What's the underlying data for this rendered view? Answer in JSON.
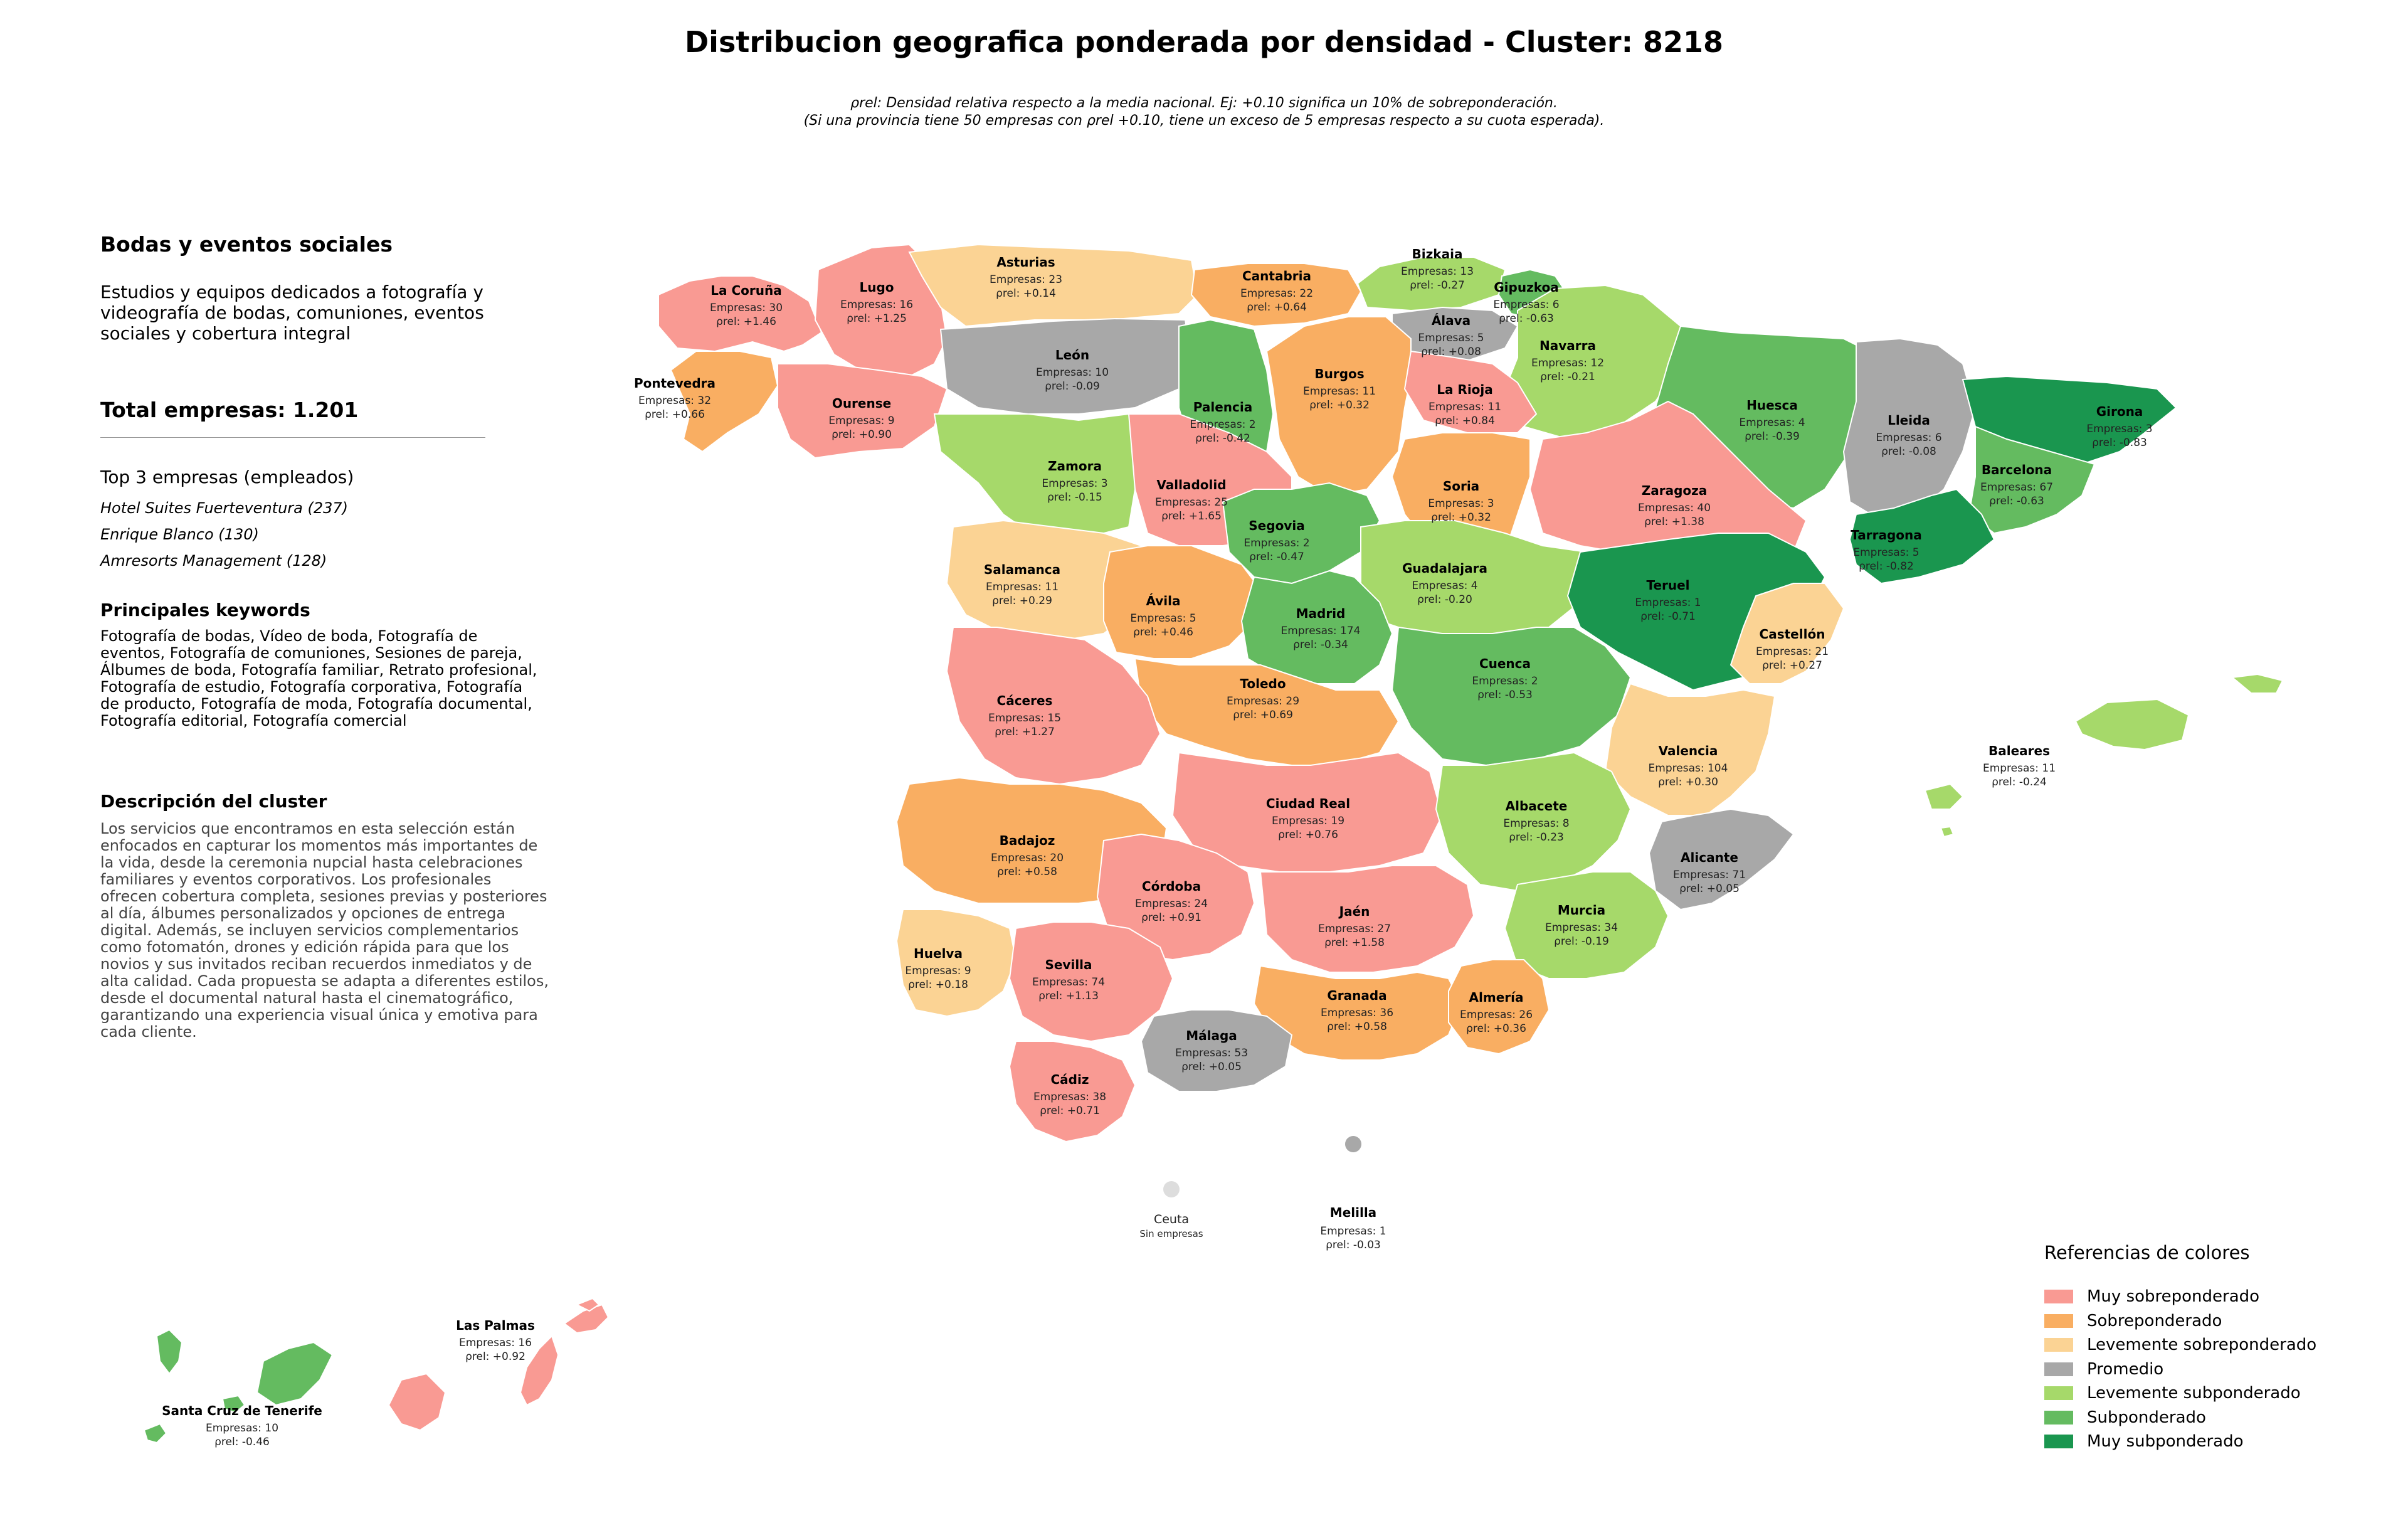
{
  "title": "Distribucion geografica ponderada por densidad - Cluster: 8218",
  "subtitle_line1": "ρrel: Densidad relativa respecto a la media nacional. Ej: +0.10 significa un 10% de sobreponderación.",
  "subtitle_line2": "(Si una provincia tiene 50 empresas con ρrel +0.10, tiene un exceso de 5 empresas respecto a su cuota esperada).",
  "panel": {
    "cluster_name": "Bodas y eventos sociales",
    "cluster_summary": "Estudios y equipos dedicados a fotografía y videografía de bodas, comuniones, eventos sociales y cobertura integral",
    "total_label": "Total empresas: 1.201",
    "top_label": "Top 3 empresas (empleados)",
    "top_companies": [
      "Hotel Suites Fuerteventura (237)",
      "Enrique Blanco (130)",
      "Amresorts Management (128)"
    ],
    "keywords_heading": "Principales keywords",
    "keywords": "Fotografía de bodas, Vídeo de boda, Fotografía de eventos, Fotografía de comuniones, Sesiones de pareja, Álbumes de boda, Fotografía familiar, Retrato profesional, Fotografía de estudio, Fotografía corporativa, Fotografía de producto, Fotografía de moda, Fotografía documental, Fotografía editorial, Fotografía comercial",
    "description_heading": "Descripción del cluster",
    "description": "Los servicios que encontramos en esta selección están enfocados en capturar los momentos más importantes de la vida, desde la ceremonia nupcial hasta celebraciones familiares y eventos corporativos. Los profesionales ofrecen cobertura completa, sesiones previas y posteriores al día, álbumes personalizados y opciones de entrega digital. Además, se incluyen servicios complementarios como fotomatón, drones y edición rápida para que los novios y sus invitados reciban recuerdos inmediatos y de alta calidad. Cada propuesta se adapta a diferentes estilos, desde el documental natural hasta el cinematográfico, garantizando una experiencia visual única y emotiva para cada cliente."
  },
  "colors": {
    "muy_sobre": "#f99a93",
    "sobre": "#f9ae62",
    "lev_sobre": "#fbd394",
    "promedio": "#a8a8a8",
    "lev_sub": "#a6d96a",
    "sub": "#64bb60",
    "muy_sub": "#1a964f",
    "no_data": "#dddddd"
  },
  "legend": {
    "title": "Referencias de colores",
    "items": [
      {
        "label": "Muy sobreponderado",
        "cat": "muy_sobre"
      },
      {
        "label": "Sobreponderado",
        "cat": "sobre"
      },
      {
        "label": "Levemente sobreponderado",
        "cat": "lev_sobre"
      },
      {
        "label": "Promedio",
        "cat": "promedio"
      },
      {
        "label": "Levemente subponderado",
        "cat": "lev_sub"
      },
      {
        "label": "Subponderado",
        "cat": "sub"
      },
      {
        "label": "Muy subponderado",
        "cat": "muy_sub"
      }
    ]
  },
  "companies_prefix": "Empresas: ",
  "rho_prefix": "ρrel: ",
  "provinces": [
    {
      "name": "La Coruña",
      "companies": 30,
      "rho": "+1.46",
      "cat": "muy_sobre"
    },
    {
      "name": "Lugo",
      "companies": 16,
      "rho": "+1.25",
      "cat": "muy_sobre"
    },
    {
      "name": "Asturias",
      "companies": 23,
      "rho": "+0.14",
      "cat": "lev_sobre"
    },
    {
      "name": "Cantabria",
      "companies": 22,
      "rho": "+0.64",
      "cat": "sobre"
    },
    {
      "name": "Bizkaia",
      "companies": 13,
      "rho": "-0.27",
      "cat": "lev_sub"
    },
    {
      "name": "Gipuzkoa",
      "companies": 6,
      "rho": "-0.63",
      "cat": "sub"
    },
    {
      "name": "Álava",
      "companies": 5,
      "rho": "+0.08",
      "cat": "promedio"
    },
    {
      "name": "Navarra",
      "companies": 12,
      "rho": "-0.21",
      "cat": "lev_sub"
    },
    {
      "name": "Pontevedra",
      "companies": 32,
      "rho": "+0.66",
      "cat": "sobre"
    },
    {
      "name": "Ourense",
      "companies": 9,
      "rho": "+0.90",
      "cat": "muy_sobre"
    },
    {
      "name": "León",
      "companies": 10,
      "rho": "-0.09",
      "cat": "promedio"
    },
    {
      "name": "Palencia",
      "companies": 2,
      "rho": "-0.42",
      "cat": "sub"
    },
    {
      "name": "Burgos",
      "companies": 11,
      "rho": "+0.32",
      "cat": "sobre"
    },
    {
      "name": "La Rioja",
      "companies": 11,
      "rho": "+0.84",
      "cat": "muy_sobre"
    },
    {
      "name": "Huesca",
      "companies": 4,
      "rho": "-0.39",
      "cat": "sub"
    },
    {
      "name": "Lleida",
      "companies": 6,
      "rho": "-0.08",
      "cat": "promedio"
    },
    {
      "name": "Girona",
      "companies": 3,
      "rho": "-0.83",
      "cat": "muy_sub"
    },
    {
      "name": "Barcelona",
      "companies": 67,
      "rho": "-0.63",
      "cat": "sub"
    },
    {
      "name": "Zamora",
      "companies": 3,
      "rho": "-0.15",
      "cat": "lev_sub"
    },
    {
      "name": "Valladolid",
      "companies": 25,
      "rho": "+1.65",
      "cat": "muy_sobre"
    },
    {
      "name": "Soria",
      "companies": 3,
      "rho": "+0.32",
      "cat": "sobre"
    },
    {
      "name": "Zaragoza",
      "companies": 40,
      "rho": "+1.38",
      "cat": "muy_sobre"
    },
    {
      "name": "Tarragona",
      "companies": 5,
      "rho": "-0.82",
      "cat": "muy_sub"
    },
    {
      "name": "Segovia",
      "companies": 2,
      "rho": "-0.47",
      "cat": "sub"
    },
    {
      "name": "Salamanca",
      "companies": 11,
      "rho": "+0.29",
      "cat": "lev_sobre"
    },
    {
      "name": "Guadalajara",
      "companies": 4,
      "rho": "-0.20",
      "cat": "lev_sub"
    },
    {
      "name": "Teruel",
      "companies": 1,
      "rho": "-0.71",
      "cat": "muy_sub"
    },
    {
      "name": "Ávila",
      "companies": 5,
      "rho": "+0.46",
      "cat": "sobre"
    },
    {
      "name": "Madrid",
      "companies": 174,
      "rho": "-0.34",
      "cat": "sub"
    },
    {
      "name": "Castellón",
      "companies": 21,
      "rho": "+0.27",
      "cat": "lev_sobre"
    },
    {
      "name": "Cuenca",
      "companies": 2,
      "rho": "-0.53",
      "cat": "sub"
    },
    {
      "name": "Toledo",
      "companies": 29,
      "rho": "+0.69",
      "cat": "sobre"
    },
    {
      "name": "Cáceres",
      "companies": 15,
      "rho": "+1.27",
      "cat": "muy_sobre"
    },
    {
      "name": "Valencia",
      "companies": 104,
      "rho": "+0.30",
      "cat": "lev_sobre"
    },
    {
      "name": "Baleares",
      "companies": 11,
      "rho": "-0.24",
      "cat": "lev_sub"
    },
    {
      "name": "Ciudad Real",
      "companies": 19,
      "rho": "+0.76",
      "cat": "muy_sobre"
    },
    {
      "name": "Albacete",
      "companies": 8,
      "rho": "-0.23",
      "cat": "lev_sub"
    },
    {
      "name": "Badajoz",
      "companies": 20,
      "rho": "+0.58",
      "cat": "sobre"
    },
    {
      "name": "Alicante",
      "companies": 71,
      "rho": "+0.05",
      "cat": "promedio"
    },
    {
      "name": "Córdoba",
      "companies": 24,
      "rho": "+0.91",
      "cat": "muy_sobre"
    },
    {
      "name": "Jaén",
      "companies": 27,
      "rho": "+1.58",
      "cat": "muy_sobre"
    },
    {
      "name": "Murcia",
      "companies": 34,
      "rho": "-0.19",
      "cat": "lev_sub"
    },
    {
      "name": "Huelva",
      "companies": 9,
      "rho": "+0.18",
      "cat": "lev_sobre"
    },
    {
      "name": "Sevilla",
      "companies": 74,
      "rho": "+1.13",
      "cat": "muy_sobre"
    },
    {
      "name": "Granada",
      "companies": 36,
      "rho": "+0.58",
      "cat": "sobre"
    },
    {
      "name": "Almería",
      "companies": 26,
      "rho": "+0.36",
      "cat": "sobre"
    },
    {
      "name": "Málaga",
      "companies": 53,
      "rho": "+0.05",
      "cat": "promedio"
    },
    {
      "name": "Cádiz",
      "companies": 38,
      "rho": "+0.71",
      "cat": "muy_sobre"
    },
    {
      "name": "Melilla",
      "companies": 1,
      "rho": "-0.03",
      "cat": "promedio"
    },
    {
      "name": "Las Palmas",
      "companies": 16,
      "rho": "+0.92",
      "cat": "muy_sobre"
    },
    {
      "name": "Santa Cruz de Tenerife",
      "companies": 10,
      "rho": "-0.46",
      "cat": "sub"
    }
  ],
  "ceuta": {
    "name": "Ceuta",
    "note": "Sin empresas",
    "cat": "no_data"
  }
}
